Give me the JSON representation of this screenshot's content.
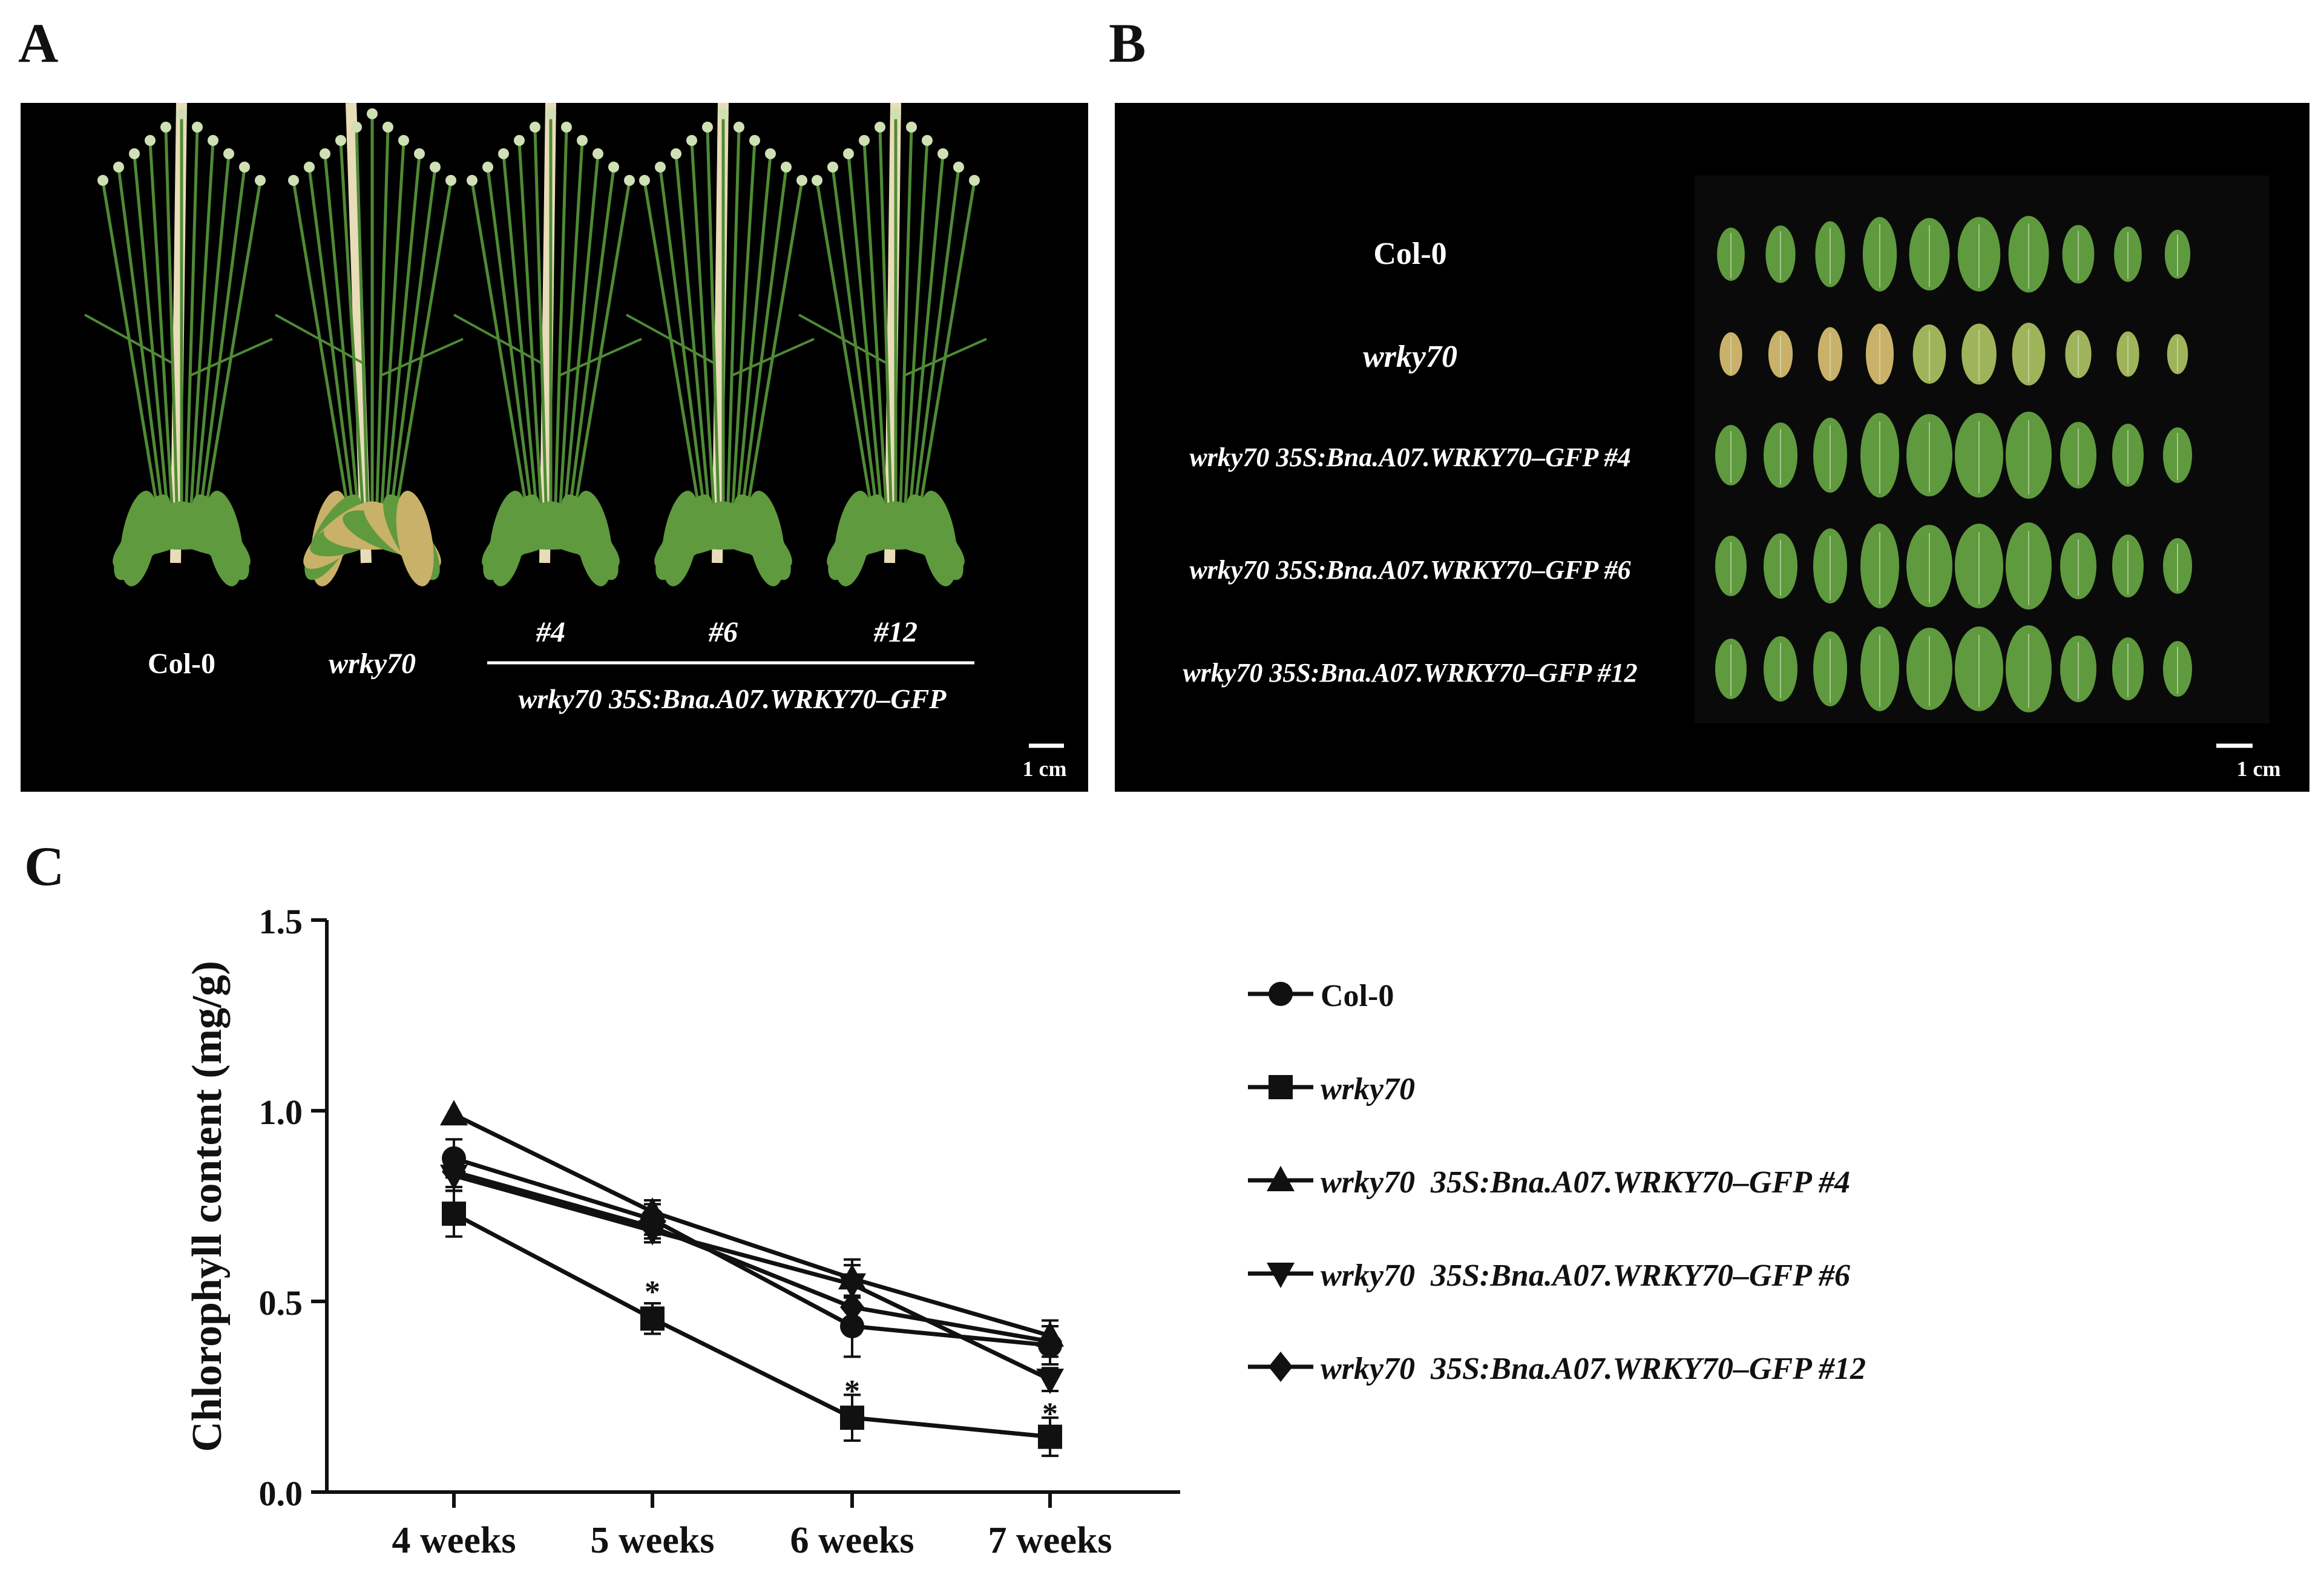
{
  "panels": {
    "a": {
      "letter": "A",
      "plant_labels": [
        "Col-0",
        "wrky70"
      ],
      "line_labels": [
        "#4",
        "#6",
        "#12"
      ],
      "group_label": "wrky70 35S:Bna.A07.WRKY70–GFP",
      "scale_bar": "1 cm"
    },
    "b": {
      "letter": "B",
      "row_labels": [
        "Col-0",
        "wrky70",
        "wrky70 35S:Bna.A07.WRKY70–GFP #4",
        "wrky70 35S:Bna.A07.WRKY70–GFP #6",
        "wrky70 35S:Bna.A07.WRKY70–GFP #12"
      ],
      "leaves_per_row": 10,
      "scale_bar": "1 cm"
    },
    "c": {
      "letter": "C"
    }
  },
  "colors": {
    "panel_background": "#000000",
    "healthy_leaf": "#5f9a3e",
    "senescent_leaf": "#c9b169",
    "ink": "#111111"
  },
  "chart_data": {
    "type": "line",
    "ylabel": "Chlorophyll content (mg/g)",
    "xlabel": "",
    "categories": [
      "4 weeks",
      "5 weeks",
      "6 weeks",
      "7 weeks"
    ],
    "ylim": [
      0.0,
      1.5
    ],
    "yticks": [
      "0.0",
      "0.5",
      "1.0",
      "1.5"
    ],
    "ytick_values": [
      0.0,
      0.5,
      1.0,
      1.5
    ],
    "grid": false,
    "legend_position": "right",
    "series": [
      {
        "name": "Col-0",
        "marker": "circle",
        "italic": false,
        "values": [
          0.875,
          0.715,
          0.435,
          0.385
        ],
        "errors": [
          0.05,
          0.04,
          0.08,
          0.05
        ]
      },
      {
        "name": "wrky70",
        "marker": "square",
        "italic": true,
        "values": [
          0.73,
          0.455,
          0.195,
          0.145
        ],
        "errors": [
          0.06,
          0.04,
          0.06,
          0.05
        ]
      },
      {
        "name": "wrky70  35S:Bna.A07.WRKY70–GFP #4",
        "marker": "triangle-up",
        "italic": true,
        "values": [
          0.99,
          0.735,
          0.56,
          0.41
        ],
        "errors": [
          0.0,
          0.03,
          0.05,
          0.04
        ]
      },
      {
        "name": "wrky70  35S:Bna.A07.WRKY70–GFP #6",
        "marker": "triangle-down",
        "italic": true,
        "values": [
          0.83,
          0.685,
          0.545,
          0.295
        ],
        "errors": [
          0.04,
          0.03,
          0.05,
          0.03
        ]
      },
      {
        "name": "wrky70  35S:Bna.A07.WRKY70–GFP #12",
        "marker": "diamond",
        "italic": true,
        "values": [
          0.84,
          0.695,
          0.485,
          0.395
        ],
        "errors": [
          0.04,
          0.03,
          0.05,
          0.04
        ]
      }
    ],
    "annotations": [
      {
        "text": "*",
        "category": "5 weeks",
        "y": 0.53
      },
      {
        "text": "*",
        "category": "6 weeks",
        "y": 0.27
      },
      {
        "text": "*",
        "category": "7 weeks",
        "y": 0.21
      }
    ]
  }
}
